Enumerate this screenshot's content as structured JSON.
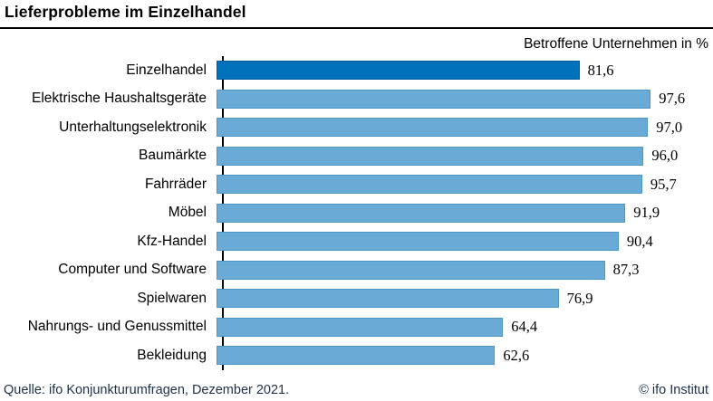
{
  "header": {
    "title": "Lieferprobleme im Einzelhandel"
  },
  "chart_data": {
    "type": "bar",
    "orientation": "horizontal",
    "title": "Lieferprobleme im Einzelhandel",
    "subtitle": "Betroffene Unternehmen in %",
    "categories": [
      "Einzelhandel",
      "Elektrische Haushaltsgeräte",
      "Unterhaltungselektronik",
      "Baumärkte",
      "Fahrräder",
      "Möbel",
      "Kfz-Handel",
      "Computer und Software",
      "Spielwaren",
      "Nahrungs- und Genussmittel",
      "Bekleidung"
    ],
    "values": [
      81.6,
      97.6,
      97.0,
      96.0,
      95.7,
      91.9,
      90.4,
      87.3,
      76.9,
      64.4,
      62.6
    ],
    "value_labels": [
      "81,6",
      "97,6",
      "97,0",
      "96,0",
      "95,7",
      "91,9",
      "90,4",
      "87,3",
      "76,9",
      "64,4",
      "62,6"
    ],
    "xlabel": "",
    "ylabel": "",
    "xlim": [
      0,
      100
    ],
    "grid": false,
    "legend": false,
    "highlight_index": 0,
    "colors": {
      "highlight_fill": "#0072BC",
      "highlight_border": "#005A9C",
      "default_fill": "#69AAD7",
      "default_border": "#4D94C7"
    }
  },
  "footer": {
    "source": "Quelle: ifo Konjunkturumfragen, Dezember 2021.",
    "copyright": "© ifo Institut"
  }
}
